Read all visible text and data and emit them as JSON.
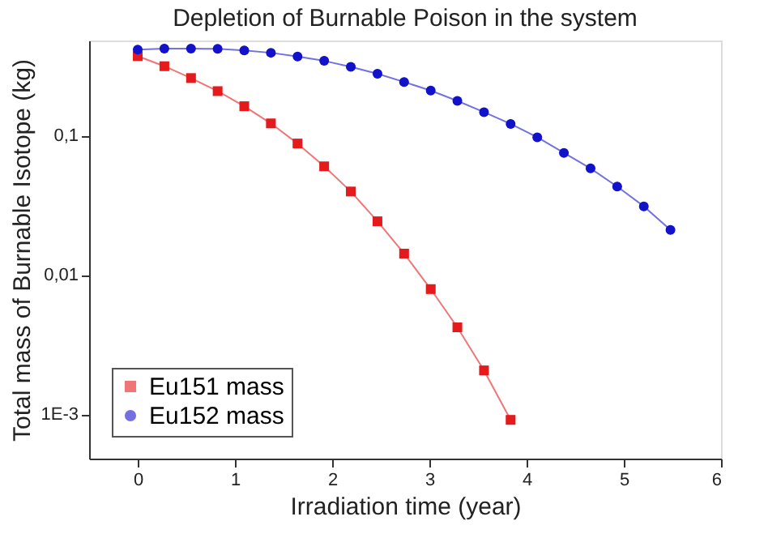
{
  "chart_data": {
    "type": "line",
    "title": "Depletion of Burnable Poison in the system",
    "xlabel": "Irradiation time (year)",
    "ylabel": "Total mass of Burnable Isotope  (kg)",
    "log": "y",
    "xlim": [
      -0.5,
      6
    ],
    "xticks": [
      0,
      1,
      2,
      3,
      4,
      5,
      6
    ],
    "ylim": [
      0.00048,
      0.48
    ],
    "yticks": [
      {
        "value": 0.001,
        "label": "1E-3"
      },
      {
        "value": 0.01,
        "label": "0,01"
      },
      {
        "value": 0.1,
        "label": "0,1"
      }
    ],
    "grid": false,
    "legend": "bottom left",
    "series": [
      {
        "name": "Eu151 mass",
        "color": "#e41a1c",
        "marker": "square",
        "x": [
          0,
          0.274,
          0.548,
          0.822,
          1.096,
          1.37,
          1.644,
          1.918,
          2.192,
          2.466,
          2.74,
          3.014,
          3.288,
          3.562,
          3.836
        ],
        "values": [
          0.371,
          0.314,
          0.258,
          0.208,
          0.162,
          0.122,
          0.0875,
          0.06,
          0.0396,
          0.0242,
          0.0142,
          0.0079,
          0.0042,
          0.00206,
          0.00091
        ]
      },
      {
        "name": "Eu152 mass",
        "color": "#1212cc",
        "marker": "circle",
        "x": [
          0,
          0.274,
          0.548,
          0.822,
          1.096,
          1.37,
          1.644,
          1.918,
          2.192,
          2.466,
          2.74,
          3.014,
          3.288,
          3.562,
          3.836,
          4.11,
          4.384,
          4.658,
          4.932,
          5.206,
          5.48
        ],
        "values": [
          0.413,
          0.42,
          0.42,
          0.418,
          0.407,
          0.392,
          0.368,
          0.343,
          0.311,
          0.277,
          0.242,
          0.21,
          0.177,
          0.147,
          0.121,
          0.097,
          0.075,
          0.058,
          0.043,
          0.031,
          0.021
        ]
      }
    ]
  }
}
